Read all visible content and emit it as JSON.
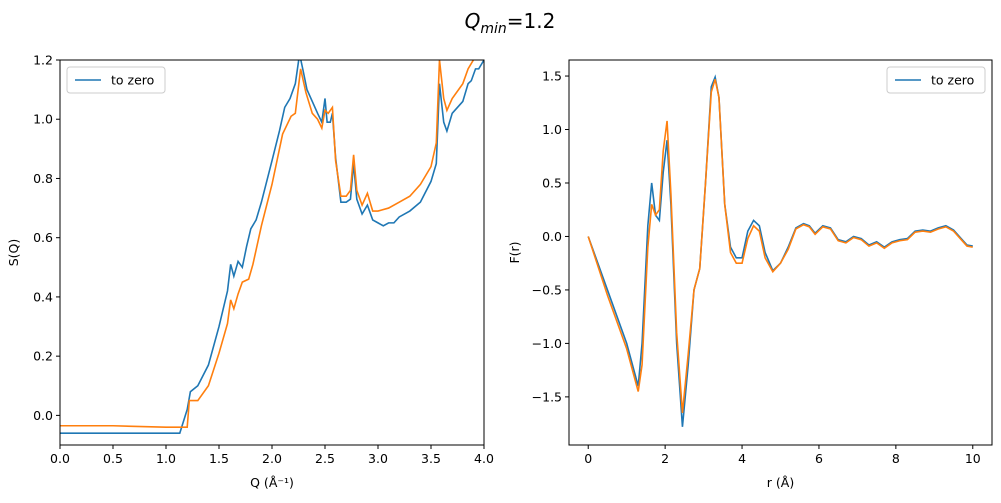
{
  "figure": {
    "suptitle": {
      "base": "Q",
      "sub": "min",
      "rest": "=1.2"
    }
  },
  "chart_data": [
    {
      "type": "line",
      "xlabel": "Q (Å⁻¹)",
      "ylabel": "S(Q)",
      "xlim": [
        0.0,
        4.0
      ],
      "ylim": [
        -0.1,
        1.2
      ],
      "xticks": [
        "0.0",
        "0.5",
        "1.0",
        "1.5",
        "2.0",
        "2.5",
        "3.0",
        "3.5",
        "4.0"
      ],
      "yticks": [
        "0.0",
        "0.2",
        "0.4",
        "0.6",
        "0.8",
        "1.0",
        "1.2"
      ],
      "legend": {
        "placement": "upper-left",
        "entries": [
          "to zero"
        ]
      },
      "grid": false,
      "series": [
        {
          "name": "to zero",
          "color": "#1f77b4",
          "points": [
            [
              0,
              -0.06
            ],
            [
              1.0,
              -0.06
            ],
            [
              1.13,
              -0.06
            ],
            [
              1.2,
              0.02
            ],
            [
              1.23,
              0.08
            ],
            [
              1.3,
              0.1
            ],
            [
              1.4,
              0.17
            ],
            [
              1.5,
              0.3
            ],
            [
              1.58,
              0.42
            ],
            [
              1.61,
              0.51
            ],
            [
              1.64,
              0.47
            ],
            [
              1.68,
              0.52
            ],
            [
              1.72,
              0.5
            ],
            [
              1.76,
              0.57
            ],
            [
              1.8,
              0.63
            ],
            [
              1.85,
              0.66
            ],
            [
              1.9,
              0.72
            ],
            [
              2.0,
              0.86
            ],
            [
              2.07,
              0.96
            ],
            [
              2.12,
              1.04
            ],
            [
              2.17,
              1.07
            ],
            [
              2.22,
              1.12
            ],
            [
              2.26,
              1.22
            ],
            [
              2.29,
              1.17
            ],
            [
              2.33,
              1.1
            ],
            [
              2.38,
              1.06
            ],
            [
              2.43,
              1.02
            ],
            [
              2.47,
              0.99
            ],
            [
              2.5,
              1.07
            ],
            [
              2.52,
              0.99
            ],
            [
              2.55,
              0.99
            ],
            [
              2.57,
              1.02
            ],
            [
              2.6,
              0.87
            ],
            [
              2.65,
              0.72
            ],
            [
              2.7,
              0.72
            ],
            [
              2.74,
              0.73
            ],
            [
              2.77,
              0.85
            ],
            [
              2.8,
              0.73
            ],
            [
              2.85,
              0.68
            ],
            [
              2.9,
              0.71
            ],
            [
              2.95,
              0.66
            ],
            [
              3.0,
              0.65
            ],
            [
              3.05,
              0.64
            ],
            [
              3.1,
              0.65
            ],
            [
              3.15,
              0.65
            ],
            [
              3.2,
              0.67
            ],
            [
              3.3,
              0.69
            ],
            [
              3.4,
              0.72
            ],
            [
              3.5,
              0.79
            ],
            [
              3.55,
              0.85
            ],
            [
              3.58,
              1.12
            ],
            [
              3.62,
              0.99
            ],
            [
              3.65,
              0.96
            ],
            [
              3.7,
              1.02
            ],
            [
              3.8,
              1.06
            ],
            [
              3.85,
              1.12
            ],
            [
              3.88,
              1.13
            ],
            [
              3.92,
              1.17
            ],
            [
              3.95,
              1.17
            ],
            [
              4.0,
              1.2
            ]
          ]
        },
        {
          "name": "",
          "color": "#ff7f0e",
          "points": [
            [
              0,
              -0.035
            ],
            [
              0.5,
              -0.035
            ],
            [
              1.0,
              -0.04
            ],
            [
              1.2,
              -0.04
            ],
            [
              1.22,
              0.05
            ],
            [
              1.3,
              0.05
            ],
            [
              1.4,
              0.1
            ],
            [
              1.5,
              0.21
            ],
            [
              1.58,
              0.31
            ],
            [
              1.61,
              0.39
            ],
            [
              1.64,
              0.36
            ],
            [
              1.68,
              0.41
            ],
            [
              1.72,
              0.45
            ],
            [
              1.78,
              0.46
            ],
            [
              1.82,
              0.51
            ],
            [
              1.9,
              0.64
            ],
            [
              2.0,
              0.78
            ],
            [
              2.1,
              0.95
            ],
            [
              2.18,
              1.01
            ],
            [
              2.22,
              1.02
            ],
            [
              2.27,
              1.17
            ],
            [
              2.32,
              1.09
            ],
            [
              2.38,
              1.02
            ],
            [
              2.43,
              1.0
            ],
            [
              2.47,
              0.97
            ],
            [
              2.5,
              1.03
            ],
            [
              2.53,
              1.02
            ],
            [
              2.57,
              1.04
            ],
            [
              2.6,
              0.86
            ],
            [
              2.65,
              0.74
            ],
            [
              2.7,
              0.74
            ],
            [
              2.74,
              0.76
            ],
            [
              2.77,
              0.88
            ],
            [
              2.8,
              0.76
            ],
            [
              2.85,
              0.71
            ],
            [
              2.9,
              0.75
            ],
            [
              2.95,
              0.69
            ],
            [
              3.0,
              0.69
            ],
            [
              3.1,
              0.7
            ],
            [
              3.2,
              0.72
            ],
            [
              3.3,
              0.74
            ],
            [
              3.4,
              0.78
            ],
            [
              3.5,
              0.84
            ],
            [
              3.55,
              0.92
            ],
            [
              3.58,
              1.2
            ],
            [
              3.62,
              1.07
            ],
            [
              3.65,
              1.03
            ],
            [
              3.7,
              1.07
            ],
            [
              3.8,
              1.12
            ],
            [
              3.85,
              1.17
            ],
            [
              3.9,
              1.2
            ],
            [
              3.95,
              1.22
            ],
            [
              4.0,
              1.22
            ]
          ]
        }
      ]
    },
    {
      "type": "line",
      "xlabel": "r (Å)",
      "ylabel": "F(r)",
      "xlim": [
        -0.5,
        10.5
      ],
      "ylim": [
        -1.95,
        1.65
      ],
      "xticks": [
        "0",
        "2",
        "4",
        "6",
        "8",
        "10"
      ],
      "yticks": [
        "−1.5",
        "−1.0",
        "−0.5",
        "0.0",
        "0.5",
        "1.0",
        "1.5"
      ],
      "legend": {
        "placement": "upper-right",
        "entries": [
          "to zero"
        ]
      },
      "grid": false,
      "series": [
        {
          "name": "to zero",
          "color": "#1f77b4",
          "points": [
            [
              0,
              0.0
            ],
            [
              0.5,
              -0.5
            ],
            [
              1.0,
              -1.0
            ],
            [
              1.3,
              -1.4
            ],
            [
              1.4,
              -1.0
            ],
            [
              1.55,
              0.1
            ],
            [
              1.65,
              0.5
            ],
            [
              1.75,
              0.2
            ],
            [
              1.85,
              0.15
            ],
            [
              1.95,
              0.6
            ],
            [
              2.05,
              0.9
            ],
            [
              2.15,
              0.3
            ],
            [
              2.3,
              -1.0
            ],
            [
              2.45,
              -1.78
            ],
            [
              2.6,
              -1.2
            ],
            [
              2.75,
              -0.5
            ],
            [
              2.9,
              -0.3
            ],
            [
              3.05,
              0.5
            ],
            [
              3.2,
              1.4
            ],
            [
              3.3,
              1.49
            ],
            [
              3.4,
              1.3
            ],
            [
              3.55,
              0.3
            ],
            [
              3.7,
              -0.1
            ],
            [
              3.85,
              -0.2
            ],
            [
              4.0,
              -0.2
            ],
            [
              4.15,
              0.05
            ],
            [
              4.3,
              0.15
            ],
            [
              4.45,
              0.1
            ],
            [
              4.6,
              -0.15
            ],
            [
              4.8,
              -0.32
            ],
            [
              5.0,
              -0.25
            ],
            [
              5.2,
              -0.1
            ],
            [
              5.4,
              0.08
            ],
            [
              5.6,
              0.12
            ],
            [
              5.75,
              0.1
            ],
            [
              5.9,
              0.03
            ],
            [
              6.1,
              0.1
            ],
            [
              6.3,
              0.08
            ],
            [
              6.5,
              -0.03
            ],
            [
              6.7,
              -0.05
            ],
            [
              6.9,
              0.0
            ],
            [
              7.1,
              -0.02
            ],
            [
              7.3,
              -0.08
            ],
            [
              7.5,
              -0.05
            ],
            [
              7.7,
              -0.1
            ],
            [
              7.9,
              -0.05
            ],
            [
              8.1,
              -0.03
            ],
            [
              8.3,
              -0.02
            ],
            [
              8.5,
              0.05
            ],
            [
              8.7,
              0.06
            ],
            [
              8.9,
              0.05
            ],
            [
              9.1,
              0.08
            ],
            [
              9.3,
              0.1
            ],
            [
              9.5,
              0.06
            ],
            [
              9.7,
              -0.02
            ],
            [
              9.85,
              -0.08
            ],
            [
              10.0,
              -0.09
            ]
          ]
        },
        {
          "name": "",
          "color": "#ff7f0e",
          "points": [
            [
              0,
              0.0
            ],
            [
              0.5,
              -0.55
            ],
            [
              1.0,
              -1.05
            ],
            [
              1.3,
              -1.45
            ],
            [
              1.4,
              -1.2
            ],
            [
              1.55,
              -0.1
            ],
            [
              1.65,
              0.3
            ],
            [
              1.75,
              0.2
            ],
            [
              1.85,
              0.25
            ],
            [
              1.95,
              0.8
            ],
            [
              2.05,
              1.08
            ],
            [
              2.15,
              0.4
            ],
            [
              2.3,
              -0.9
            ],
            [
              2.45,
              -1.65
            ],
            [
              2.6,
              -1.1
            ],
            [
              2.75,
              -0.5
            ],
            [
              2.9,
              -0.3
            ],
            [
              3.05,
              0.5
            ],
            [
              3.2,
              1.35
            ],
            [
              3.3,
              1.47
            ],
            [
              3.4,
              1.3
            ],
            [
              3.55,
              0.3
            ],
            [
              3.7,
              -0.15
            ],
            [
              3.85,
              -0.25
            ],
            [
              4.0,
              -0.25
            ],
            [
              4.15,
              -0.02
            ],
            [
              4.3,
              0.1
            ],
            [
              4.45,
              0.05
            ],
            [
              4.6,
              -0.2
            ],
            [
              4.8,
              -0.33
            ],
            [
              5.0,
              -0.25
            ],
            [
              5.2,
              -0.12
            ],
            [
              5.4,
              0.07
            ],
            [
              5.6,
              0.11
            ],
            [
              5.75,
              0.09
            ],
            [
              5.9,
              0.02
            ],
            [
              6.1,
              0.09
            ],
            [
              6.3,
              0.07
            ],
            [
              6.5,
              -0.04
            ],
            [
              6.7,
              -0.06
            ],
            [
              6.9,
              -0.01
            ],
            [
              7.1,
              -0.03
            ],
            [
              7.3,
              -0.09
            ],
            [
              7.5,
              -0.06
            ],
            [
              7.7,
              -0.11
            ],
            [
              7.9,
              -0.06
            ],
            [
              8.1,
              -0.04
            ],
            [
              8.3,
              -0.03
            ],
            [
              8.5,
              0.04
            ],
            [
              8.7,
              0.05
            ],
            [
              8.9,
              0.04
            ],
            [
              9.1,
              0.07
            ],
            [
              9.3,
              0.09
            ],
            [
              9.5,
              0.05
            ],
            [
              9.7,
              -0.03
            ],
            [
              9.85,
              -0.09
            ],
            [
              10.0,
              -0.1
            ]
          ]
        }
      ]
    }
  ]
}
